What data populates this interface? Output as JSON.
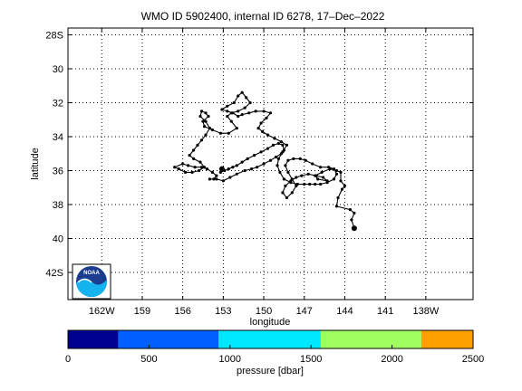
{
  "chart_data": {
    "type": "scatter",
    "title": "WMO ID 5902400, internal ID 6278, 17–Dec–2022",
    "xlabel": "longitude",
    "ylabel": "latitude",
    "xlim": [
      -164.5,
      -134.5
    ],
    "ylim": [
      -43.6,
      -27.6
    ],
    "y_reversed": true,
    "grid": true,
    "grid_style": "dotted",
    "x_ticks": [
      {
        "value": -162,
        "label": "162W"
      },
      {
        "value": -159,
        "label": "159"
      },
      {
        "value": -156,
        "label": "156"
      },
      {
        "value": -153,
        "label": "153"
      },
      {
        "value": -150,
        "label": "150"
      },
      {
        "value": -147,
        "label": "147"
      },
      {
        "value": -144,
        "label": "144"
      },
      {
        "value": -141,
        "label": "141"
      },
      {
        "value": -138,
        "label": "138W"
      }
    ],
    "y_ticks": [
      {
        "value": -28,
        "label": "28S"
      },
      {
        "value": -30,
        "label": "30"
      },
      {
        "value": -32,
        "label": "32"
      },
      {
        "value": -34,
        "label": "34"
      },
      {
        "value": -36,
        "label": "36"
      },
      {
        "value": -38,
        "label": "38"
      },
      {
        "value": -40,
        "label": "40"
      },
      {
        "value": -42,
        "label": "42S"
      }
    ],
    "series": [
      {
        "color": "#000000",
        "lon": [
          -143.3,
          -143.5,
          -143.3,
          -143.6,
          -144.6,
          -144.5,
          -144.2,
          -144.0,
          -144.3,
          -144.3,
          -144.6,
          -145.1,
          -145.7,
          -146.2,
          -146.0,
          -145.3,
          -145.6,
          -146.1,
          -146.7,
          -147.2,
          -147.6,
          -148.0,
          -148.4,
          -148.6,
          -148.3,
          -147.9,
          -147.6,
          -147.9,
          -148.2,
          -148.4,
          -148.2,
          -147.8,
          -147.3,
          -146.9,
          -146.4,
          -145.8,
          -145.2,
          -144.8,
          -144.6,
          -144.8,
          -145.3,
          -145.8,
          -146.2,
          -146.6,
          -147.0,
          -147.5,
          -148.0,
          -148.5,
          -148.8,
          -149.0,
          -148.9,
          -148.6,
          -148.3,
          -148.7,
          -149.2,
          -149.7,
          -150.1,
          -150.4,
          -150.2,
          -149.8,
          -149.5,
          -150.0,
          -150.6,
          -151.1,
          -151.6,
          -151.9,
          -152.3,
          -152.7,
          -153.1,
          -152.7,
          -152.2,
          -151.9,
          -151.6,
          -151.3,
          -151.0,
          -151.4,
          -151.9,
          -152.4,
          -152.7,
          -152.4,
          -152.0,
          -152.6,
          -153.2,
          -153.8,
          -154.4,
          -154.5,
          -154.1,
          -154.3,
          -154.6,
          -154.7,
          -154.3,
          -154.0,
          -154.3,
          -154.6,
          -154.9,
          -155.2,
          -155.5,
          -155.2,
          -154.7,
          -154.4,
          -154.8,
          -155.3,
          -155.8,
          -156.3,
          -156.6,
          -156.0,
          -155.6,
          -155.1,
          -154.6,
          -154.2,
          -153.8,
          -153.5,
          -153.7,
          -154.0,
          -153.5,
          -153.0,
          -152.5,
          -152.0,
          -151.4,
          -150.9,
          -150.5,
          -150.0,
          -149.5,
          -149.1,
          -148.7,
          -148.5,
          -148.6,
          -148.9,
          -149.3,
          -149.7,
          -150.2,
          -150.7,
          -151.2,
          -151.6,
          -152.0,
          -152.3,
          -152.6,
          -152.9,
          -153.2,
          -153.1
        ],
        "lat": [
          -39.4,
          -38.9,
          -38.5,
          -38.3,
          -38.1,
          -37.6,
          -37.1,
          -36.9,
          -36.6,
          -36.1,
          -36.0,
          -35.9,
          -36.1,
          -36.3,
          -36.5,
          -36.6,
          -36.4,
          -36.3,
          -36.2,
          -36.3,
          -36.4,
          -36.6,
          -36.9,
          -37.3,
          -37.6,
          -37.3,
          -36.9,
          -36.5,
          -36.1,
          -35.7,
          -35.4,
          -35.3,
          -35.3,
          -35.4,
          -35.6,
          -35.8,
          -35.8,
          -35.9,
          -36.2,
          -36.5,
          -36.7,
          -36.8,
          -36.8,
          -36.8,
          -36.8,
          -36.8,
          -36.7,
          -36.5,
          -36.1,
          -35.7,
          -35.3,
          -34.9,
          -34.5,
          -34.3,
          -34.1,
          -33.9,
          -33.7,
          -33.5,
          -33.2,
          -32.9,
          -32.6,
          -32.5,
          -32.5,
          -32.6,
          -32.7,
          -32.8,
          -32.6,
          -32.5,
          -32.4,
          -32.2,
          -32.0,
          -31.6,
          -31.4,
          -31.7,
          -32.0,
          -32.3,
          -32.5,
          -32.6,
          -32.8,
          -33.1,
          -33.5,
          -33.8,
          -33.8,
          -33.6,
          -33.4,
          -33.1,
          -32.8,
          -32.6,
          -32.5,
          -32.8,
          -33.1,
          -33.5,
          -33.9,
          -34.2,
          -34.5,
          -34.8,
          -35.1,
          -35.3,
          -35.5,
          -35.8,
          -36.0,
          -36.1,
          -36.1,
          -35.9,
          -35.8,
          -35.6,
          -35.7,
          -35.8,
          -35.8,
          -35.9,
          -36.1,
          -36.3,
          -36.5,
          -36.5,
          -36.5,
          -36.6,
          -36.4,
          -36.2,
          -36.0,
          -35.9,
          -35.8,
          -35.6,
          -35.4,
          -35.2,
          -35.0,
          -34.8,
          -34.5,
          -34.4,
          -34.5,
          -34.7,
          -34.9,
          -35.1,
          -35.3,
          -35.5,
          -35.7,
          -35.8,
          -35.9,
          -36.0,
          -36.1,
          -35.9
        ]
      }
    ],
    "colorbar": {
      "label": "pressure [dbar]",
      "range": [
        0,
        2500
      ],
      "ticks": [
        {
          "value": 0,
          "label": "0"
        },
        {
          "value": 500,
          "label": "500"
        },
        {
          "value": 1000,
          "label": "1000"
        },
        {
          "value": 1500,
          "label": "1500"
        },
        {
          "value": 2000,
          "label": "2000"
        },
        {
          "value": 2500,
          "label": "2500"
        }
      ],
      "bands": [
        {
          "from": 0,
          "to": 310,
          "color": "#00008f"
        },
        {
          "from": 310,
          "to": 930,
          "color": "#0060ff"
        },
        {
          "from": 930,
          "to": 1560,
          "color": "#00e8ff"
        },
        {
          "from": 1560,
          "to": 2180,
          "color": "#a0ff60"
        },
        {
          "from": 2180,
          "to": 2500,
          "color": "#ffa000"
        }
      ]
    },
    "logo": {
      "text": "NOAA",
      "colors": {
        "navy": "#1b3c8f",
        "cyan": "#14b3f0",
        "white": "#ffffff"
      }
    }
  }
}
